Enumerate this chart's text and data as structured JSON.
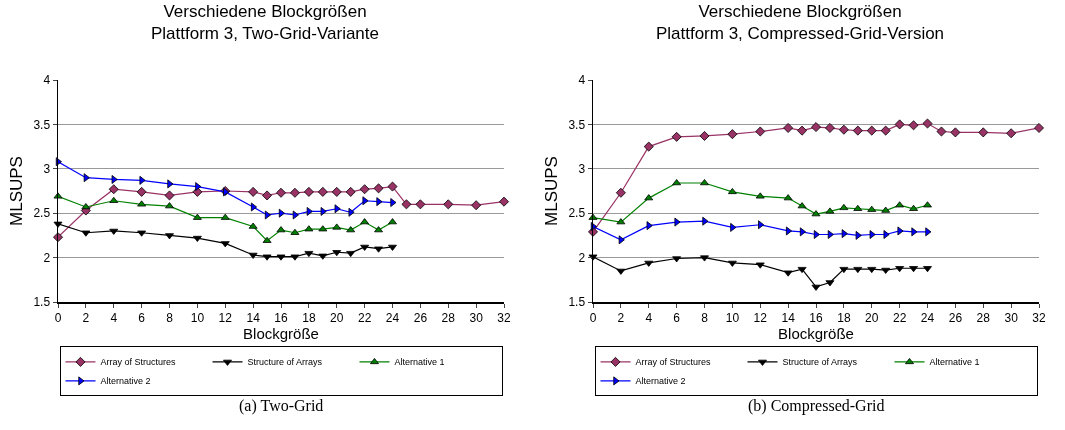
{
  "chart_data": [
    {
      "type": "line",
      "title": "Verschiedene Blockgrößen\nPlattform 3, Two-Grid-Variante",
      "xlabel": "Blockgröße",
      "ylabel": "MLSUPS",
      "x": [
        0,
        2,
        4,
        6,
        8,
        10,
        12,
        14,
        15,
        16,
        17,
        18,
        19,
        20,
        21,
        22,
        23,
        24
      ],
      "series": [
        {
          "name": "Array of Structures",
          "color": "#993366",
          "marker": "diamond",
          "x": [
            0,
            2,
            4,
            6,
            8,
            10,
            12,
            14,
            15,
            16,
            17,
            18,
            19,
            20,
            21,
            22,
            23,
            24,
            25,
            26,
            28,
            30,
            32
          ],
          "values": [
            2.23,
            2.53,
            2.77,
            2.74,
            2.7,
            2.74,
            2.75,
            2.74,
            2.7,
            2.73,
            2.73,
            2.74,
            2.74,
            2.74,
            2.74,
            2.77,
            2.78,
            2.8,
            2.6,
            2.6,
            2.6,
            2.59,
            2.63
          ]
        },
        {
          "name": "Structure of Arrays",
          "color": "#000000",
          "marker": "triangle-down",
          "values": [
            2.38,
            2.28,
            2.3,
            2.28,
            2.25,
            2.22,
            2.16,
            2.03,
            2.01,
            2.01,
            2.01,
            2.05,
            2.02,
            2.06,
            2.05,
            2.12,
            2.1,
            2.12
          ]
        },
        {
          "name": "Alternative 1",
          "color": "#008000",
          "marker": "triangle",
          "values": [
            2.69,
            2.57,
            2.64,
            2.6,
            2.58,
            2.45,
            2.45,
            2.35,
            2.19,
            2.31,
            2.28,
            2.32,
            2.32,
            2.34,
            2.31,
            2.4,
            2.31,
            2.4
          ]
        },
        {
          "name": "Alternative 2",
          "color": "#0000ff",
          "marker": "triangle-right",
          "values": [
            3.08,
            2.9,
            2.88,
            2.87,
            2.83,
            2.8,
            2.74,
            2.57,
            2.48,
            2.5,
            2.48,
            2.52,
            2.52,
            2.55,
            2.51,
            2.64,
            2.63,
            2.62
          ]
        }
      ],
      "xlim": [
        0,
        32
      ],
      "xticks": [
        0,
        2,
        4,
        6,
        8,
        10,
        12,
        14,
        16,
        18,
        20,
        22,
        24,
        26,
        28,
        30,
        32
      ],
      "ylim": [
        1.5,
        4
      ],
      "yticks": [
        1.5,
        2,
        2.5,
        3,
        3.5,
        4
      ],
      "grid": "y",
      "legend": "bottom",
      "annotations": [
        "(a) Two-Grid"
      ]
    },
    {
      "type": "line",
      "title": "Verschiedene Blockgrößen\nPlattform 3, Compressed-Grid-Version",
      "xlabel": "Blockgröße",
      "ylabel": "MLSUPS",
      "x": [
        0,
        2,
        4,
        6,
        8,
        10,
        12,
        14,
        15,
        16,
        17,
        18,
        19,
        20,
        21,
        22,
        23,
        24
      ],
      "series": [
        {
          "name": "Array of Structures",
          "color": "#993366",
          "marker": "diamond",
          "x": [
            0,
            2,
            4,
            6,
            8,
            10,
            12,
            14,
            15,
            16,
            17,
            18,
            19,
            20,
            21,
            22,
            23,
            24,
            25,
            26,
            28,
            30,
            32
          ],
          "values": [
            2.29,
            2.73,
            3.25,
            3.36,
            3.37,
            3.39,
            3.42,
            3.46,
            3.43,
            3.47,
            3.46,
            3.44,
            3.43,
            3.43,
            3.43,
            3.5,
            3.49,
            3.51,
            3.42,
            3.41,
            3.41,
            3.4,
            3.46
          ]
        },
        {
          "name": "Structure of Arrays",
          "color": "#000000",
          "marker": "triangle-down",
          "values": [
            2.01,
            1.85,
            1.94,
            1.99,
            2.0,
            1.94,
            1.92,
            1.83,
            1.87,
            1.67,
            1.72,
            1.87,
            1.87,
            1.87,
            1.86,
            1.88,
            1.88,
            1.88
          ]
        },
        {
          "name": "Alternative 1",
          "color": "#008000",
          "marker": "triangle",
          "values": [
            2.45,
            2.4,
            2.67,
            2.84,
            2.84,
            2.74,
            2.69,
            2.67,
            2.58,
            2.49,
            2.52,
            2.56,
            2.55,
            2.54,
            2.53,
            2.59,
            2.55,
            2.59
          ]
        },
        {
          "name": "Alternative 2",
          "color": "#0000ff",
          "marker": "triangle-right",
          "values": [
            2.35,
            2.2,
            2.36,
            2.4,
            2.41,
            2.34,
            2.37,
            2.3,
            2.29,
            2.26,
            2.26,
            2.27,
            2.25,
            2.26,
            2.26,
            2.3,
            2.29,
            2.29
          ]
        }
      ],
      "xlim": [
        0,
        32
      ],
      "xticks": [
        0,
        2,
        4,
        6,
        8,
        10,
        12,
        14,
        16,
        18,
        20,
        22,
        24,
        26,
        28,
        30,
        32
      ],
      "ylim": [
        1.5,
        4
      ],
      "yticks": [
        1.5,
        2,
        2.5,
        3,
        3.5,
        4
      ],
      "grid": "y",
      "legend": "bottom",
      "annotations": [
        "(b) Compressed-Grid"
      ]
    }
  ]
}
